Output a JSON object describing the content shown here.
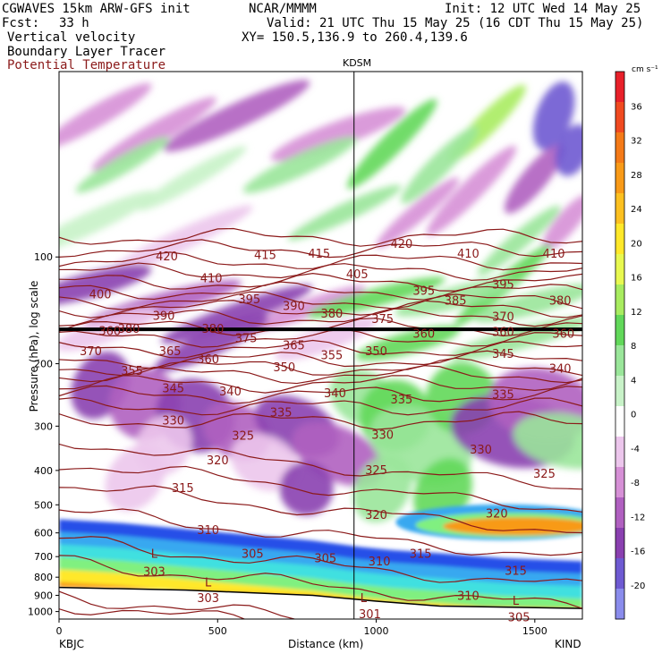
{
  "header": {
    "title": "CGWAVES 15km ARW-GFS init",
    "source": "NCAR/MMMM",
    "init": "Init: 12 UTC Wed 14 May 25",
    "fcst_label": "Fcst:",
    "fcst_value": "33 h",
    "valid": "Valid: 21 UTC Thu 15 May 25 (16 CDT Thu 15 May 25)",
    "field1": "Vertical velocity",
    "field2": "Boundary Layer Tracer",
    "field3": "Potential Temperature",
    "xy": "XY= 150.5,136.9 to 260.4,139.6",
    "station_mark": "KDSM"
  },
  "colors": {
    "theta_contour": "#8b1a1a",
    "field3_text": "#8b1a1a",
    "tropopause_line": "#000000"
  },
  "chart_data": {
    "type": "heatmap",
    "title": "",
    "xlabel": "Distance (km)",
    "ylabel": "Pressure (hPa), log scale",
    "xlim": [
      0,
      1650
    ],
    "ylim": [
      1000,
      30
    ],
    "y_scale": "log",
    "x_ticks": [
      0,
      500,
      1000,
      1500
    ],
    "y_ticks": [
      100,
      200,
      300,
      400,
      500,
      600,
      700,
      800,
      900,
      1000
    ],
    "x_end_labels": {
      "left": "KBJC",
      "right": "KIND"
    },
    "vertical_marker": {
      "x": 930,
      "label": "KDSM"
    },
    "colorbar": {
      "unit": "cm s⁻¹",
      "ticks": [
        36,
        32,
        28,
        24,
        20,
        16,
        12,
        8,
        4,
        0,
        -4,
        -8,
        -12,
        -16,
        -20
      ],
      "colors": [
        "#e8202a",
        "#f04a20",
        "#f47a18",
        "#f89a18",
        "#fcc020",
        "#ffe82a",
        "#e8f850",
        "#a8ec60",
        "#62d85a",
        "#9ae69a",
        "#c8f2c8",
        "#ffffff",
        "#ecc6ec",
        "#d690d6",
        "#b060c0",
        "#8a40b0",
        "#6e5ad2",
        "#8a8cec"
      ]
    },
    "theta_contours": [
      {
        "value": 420,
        "p": 88
      },
      {
        "value": 415,
        "p": 95
      },
      {
        "value": 410,
        "p": 103
      },
      {
        "value": 405,
        "p": 110
      },
      {
        "value": 400,
        "p": 118
      },
      {
        "value": 395,
        "p": 125
      },
      {
        "value": 390,
        "p": 133
      },
      {
        "value": 385,
        "p": 140
      },
      {
        "value": 380,
        "p": 148
      },
      {
        "value": 375,
        "p": 158
      },
      {
        "value": 370,
        "p": 170
      },
      {
        "value": 365,
        "p": 182
      },
      {
        "value": 360,
        "p": 195
      },
      {
        "value": 355,
        "p": 205
      },
      {
        "value": 350,
        "p": 215
      },
      {
        "value": 345,
        "p": 228
      },
      {
        "value": 340,
        "p": 245
      },
      {
        "value": 335,
        "p": 265
      },
      {
        "value": 330,
        "p": 290
      },
      {
        "value": 325,
        "p": 330
      },
      {
        "value": 320,
        "p": 380
      },
      {
        "value": 315,
        "p": 440
      },
      {
        "value": 310,
        "p": 520
      },
      {
        "value": 305,
        "p": 630
      },
      {
        "value": 303,
        "p": 720
      },
      {
        "value": 301,
        "p": 900
      },
      {
        "value": 305,
        "p": 950
      }
    ],
    "theta_labels": [
      {
        "text": "420",
        "x": 340,
        "p": 100
      },
      {
        "text": "415",
        "x": 650,
        "p": 99
      },
      {
        "text": "415",
        "x": 820,
        "p": 98
      },
      {
        "text": "420",
        "x": 1080,
        "p": 92
      },
      {
        "text": "410",
        "x": 1290,
        "p": 98
      },
      {
        "text": "410",
        "x": 1560,
        "p": 98
      },
      {
        "text": "400",
        "x": 130,
        "p": 128
      },
      {
        "text": "410",
        "x": 480,
        "p": 115
      },
      {
        "text": "405",
        "x": 940,
        "p": 112
      },
      {
        "text": "395",
        "x": 600,
        "p": 132
      },
      {
        "text": "395",
        "x": 1150,
        "p": 125
      },
      {
        "text": "395",
        "x": 1400,
        "p": 120
      },
      {
        "text": "390",
        "x": 330,
        "p": 147
      },
      {
        "text": "390",
        "x": 740,
        "p": 138
      },
      {
        "text": "385",
        "x": 1250,
        "p": 133
      },
      {
        "text": "380",
        "x": 860,
        "p": 145
      },
      {
        "text": "380",
        "x": 1580,
        "p": 133
      },
      {
        "text": "375",
        "x": 1020,
        "p": 150
      },
      {
        "text": "370",
        "x": 1400,
        "p": 148
      },
      {
        "text": "380",
        "x": 220,
        "p": 160
      },
      {
        "text": "360",
        "x": 160,
        "p": 162
      },
      {
        "text": "380",
        "x": 485,
        "p": 160
      },
      {
        "text": "375",
        "x": 590,
        "p": 170
      },
      {
        "text": "360",
        "x": 1150,
        "p": 165
      },
      {
        "text": "360",
        "x": 1400,
        "p": 163
      },
      {
        "text": "360",
        "x": 1590,
        "p": 165
      },
      {
        "text": "370",
        "x": 100,
        "p": 185
      },
      {
        "text": "365",
        "x": 350,
        "p": 185
      },
      {
        "text": "365",
        "x": 740,
        "p": 178
      },
      {
        "text": "360",
        "x": 470,
        "p": 195
      },
      {
        "text": "355",
        "x": 860,
        "p": 190
      },
      {
        "text": "350",
        "x": 1000,
        "p": 185
      },
      {
        "text": "345",
        "x": 1400,
        "p": 188
      },
      {
        "text": "355",
        "x": 230,
        "p": 210
      },
      {
        "text": "350",
        "x": 710,
        "p": 205
      },
      {
        "text": "340",
        "x": 1580,
        "p": 207
      },
      {
        "text": "345",
        "x": 360,
        "p": 235
      },
      {
        "text": "340",
        "x": 540,
        "p": 240
      },
      {
        "text": "340",
        "x": 870,
        "p": 243
      },
      {
        "text": "335",
        "x": 1080,
        "p": 253
      },
      {
        "text": "335",
        "x": 1400,
        "p": 245
      },
      {
        "text": "335",
        "x": 700,
        "p": 275
      },
      {
        "text": "330",
        "x": 360,
        "p": 290
      },
      {
        "text": "325",
        "x": 580,
        "p": 320
      },
      {
        "text": "330",
        "x": 1020,
        "p": 318
      },
      {
        "text": "330",
        "x": 1330,
        "p": 350
      },
      {
        "text": "320",
        "x": 500,
        "p": 375
      },
      {
        "text": "325",
        "x": 1000,
        "p": 400
      },
      {
        "text": "325",
        "x": 1530,
        "p": 410
      },
      {
        "text": "315",
        "x": 390,
        "p": 450
      },
      {
        "text": "320",
        "x": 1000,
        "p": 535
      },
      {
        "text": "320",
        "x": 1380,
        "p": 530
      },
      {
        "text": "310",
        "x": 470,
        "p": 590
      },
      {
        "text": "315",
        "x": 1140,
        "p": 690
      },
      {
        "text": "305",
        "x": 610,
        "p": 690
      },
      {
        "text": "305",
        "x": 840,
        "p": 710
      },
      {
        "text": "310",
        "x": 1010,
        "p": 725
      },
      {
        "text": "315",
        "x": 1440,
        "p": 770
      },
      {
        "text": "303",
        "x": 300,
        "p": 775
      },
      {
        "text": "303",
        "x": 470,
        "p": 920
      },
      {
        "text": "310",
        "x": 1290,
        "p": 905
      },
      {
        "text": "301",
        "x": 980,
        "p": 1020
      },
      {
        "text": "305",
        "x": 1450,
        "p": 1040
      }
    ],
    "low_labels": [
      {
        "text": "L",
        "x": 300,
        "p": 690
      },
      {
        "text": "L",
        "x": 470,
        "p": 830
      },
      {
        "text": "L",
        "x": 960,
        "p": 920
      },
      {
        "text": "L",
        "x": 1440,
        "p": 935
      }
    ],
    "tropopause_p": 160,
    "bl_top": [
      {
        "x": 0,
        "p": 610
      },
      {
        "x": 200,
        "p": 625
      },
      {
        "x": 400,
        "p": 650
      },
      {
        "x": 600,
        "p": 675
      },
      {
        "x": 800,
        "p": 700
      },
      {
        "x": 900,
        "p": 720
      },
      {
        "x": 950,
        "p": 730
      },
      {
        "x": 1050,
        "p": 745
      },
      {
        "x": 1200,
        "p": 760
      },
      {
        "x": 1400,
        "p": 785
      },
      {
        "x": 1650,
        "p": 800
      }
    ],
    "terrain_p": [
      {
        "x": 0,
        "p": 855
      },
      {
        "x": 400,
        "p": 870
      },
      {
        "x": 800,
        "p": 900
      },
      {
        "x": 1000,
        "p": 935
      },
      {
        "x": 1200,
        "p": 965
      },
      {
        "x": 1650,
        "p": 980
      }
    ]
  }
}
